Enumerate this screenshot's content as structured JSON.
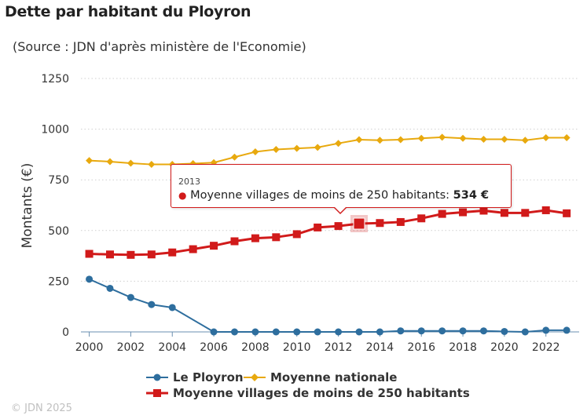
{
  "header": {
    "title": "Dette par habitant du Ployron",
    "subtitle": "(Source : JDN d'après ministère de l'Economie)"
  },
  "credit": "© JDN 2025",
  "chart_data": {
    "type": "line",
    "ylabel": "Montants (€)",
    "xlabel": "",
    "ylim": [
      0,
      1250
    ],
    "xlim": [
      1999.6,
      2023.6
    ],
    "yticks": [
      0,
      250,
      500,
      750,
      1000,
      1250
    ],
    "xticks": [
      2000,
      2002,
      2004,
      2006,
      2008,
      2010,
      2012,
      2014,
      2016,
      2018,
      2020,
      2022
    ],
    "grid": "horizontal dotted",
    "legend_position": "bottom",
    "x": [
      2000,
      2001,
      2002,
      2003,
      2004,
      2005,
      2006,
      2007,
      2008,
      2009,
      2010,
      2011,
      2012,
      2013,
      2014,
      2015,
      2016,
      2017,
      2018,
      2019,
      2020,
      2021,
      2022,
      2023
    ],
    "series": [
      {
        "name": "Le Ployron",
        "color": "#2e6e9e",
        "marker": "circle",
        "x": [
          2000,
          2001,
          2002,
          2003,
          2004,
          2006,
          2007,
          2008,
          2009,
          2010,
          2011,
          2012,
          2013,
          2014,
          2015,
          2016,
          2017,
          2018,
          2019,
          2020,
          2021,
          2022,
          2023
        ],
        "values": [
          260,
          215,
          170,
          135,
          120,
          0,
          0,
          0,
          0,
          0,
          0,
          0,
          0,
          0,
          5,
          5,
          5,
          5,
          5,
          2,
          0,
          8,
          8
        ]
      },
      {
        "name": "Moyenne nationale",
        "color": "#e8a90e",
        "marker": "diamond",
        "x": [
          2000,
          2001,
          2002,
          2003,
          2004,
          2005,
          2006,
          2007,
          2008,
          2009,
          2010,
          2011,
          2012,
          2013,
          2014,
          2015,
          2016,
          2017,
          2018,
          2019,
          2020,
          2021,
          2022,
          2023
        ],
        "values": [
          845,
          840,
          832,
          826,
          826,
          830,
          835,
          862,
          888,
          900,
          905,
          910,
          930,
          948,
          945,
          948,
          955,
          960,
          955,
          950,
          950,
          945,
          958,
          958
        ]
      },
      {
        "name": "Moyenne villages de moins de 250 habitants",
        "color": "#d11a1a",
        "marker": "square",
        "x": [
          2000,
          2001,
          2002,
          2003,
          2004,
          2005,
          2006,
          2007,
          2008,
          2009,
          2010,
          2011,
          2012,
          2013,
          2014,
          2015,
          2016,
          2017,
          2018,
          2019,
          2020,
          2021,
          2022,
          2023
        ],
        "values": [
          385,
          382,
          380,
          382,
          392,
          408,
          425,
          447,
          462,
          467,
          482,
          515,
          522,
          534,
          537,
          542,
          560,
          582,
          590,
          598,
          587,
          587,
          600,
          585
        ]
      }
    ],
    "tooltip": {
      "year": "2013",
      "series_label": "Moyenne villages de moins de 250 habitants:",
      "value_label": "534 €"
    }
  }
}
